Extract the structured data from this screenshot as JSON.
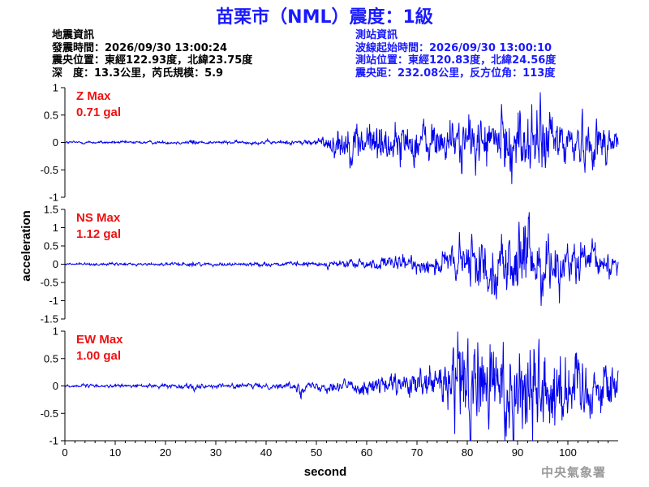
{
  "title": "苗栗市（NML）震度：1級",
  "quake_info": {
    "heading": "地震資訊",
    "time": "發震時間：2026/09/30 13:00:24",
    "epicenter": "震央位置：東經122.93度，北緯23.75度",
    "depth_magnitude": "深　度：13.3公里，芮氏規模：5.9"
  },
  "station_info": {
    "heading": "測站資訊",
    "wave_start": "波線起始時間：2026/09/30 13:00:10",
    "location": "測站位置：東經120.83度，北緯24.56度",
    "distance": "震央距：232.08公里，反方位角：113度"
  },
  "agency": "中央氣象署",
  "colors": {
    "title": "#1a1aff",
    "trace": "#0000ee",
    "max_label": "#ee1111",
    "station_info": "#1a1aff"
  },
  "chart_data": {
    "type": "line",
    "xlabel": "second",
    "ylabel": "acceleration",
    "xlim": [
      0,
      110
    ],
    "xticks": [
      0,
      10,
      20,
      30,
      40,
      50,
      60,
      70,
      80,
      90,
      100
    ],
    "panels": [
      {
        "name": "Z",
        "max_label": "Z Max",
        "max_value": "0.71 gal",
        "ylim": [
          -1,
          1
        ],
        "yticks": [
          1,
          0.5,
          0,
          -0.5,
          -1
        ],
        "envelope": [
          {
            "t": 0,
            "a": 0.02
          },
          {
            "t": 24,
            "a": 0.02
          },
          {
            "t": 25.5,
            "a": 0.05
          },
          {
            "t": 27,
            "a": 0.02
          },
          {
            "t": 45,
            "a": 0.03
          },
          {
            "t": 50,
            "a": 0.05
          },
          {
            "t": 52,
            "a": 0.1
          },
          {
            "t": 54,
            "a": 0.25
          },
          {
            "t": 60,
            "a": 0.32
          },
          {
            "t": 70,
            "a": 0.3
          },
          {
            "t": 80,
            "a": 0.34
          },
          {
            "t": 87,
            "a": 0.45
          },
          {
            "t": 93,
            "a": 0.55
          },
          {
            "t": 100,
            "a": 0.38
          },
          {
            "t": 110,
            "a": 0.25
          }
        ]
      },
      {
        "name": "NS",
        "max_label": "NS Max",
        "max_value": "1.12 gal",
        "ylim": [
          -1.5,
          1.5
        ],
        "yticks": [
          1.5,
          1,
          0.5,
          0,
          -0.5,
          -1,
          -1.5
        ],
        "envelope": [
          {
            "t": 0,
            "a": 0.03
          },
          {
            "t": 24,
            "a": 0.03
          },
          {
            "t": 25.5,
            "a": 0.08
          },
          {
            "t": 27,
            "a": 0.03
          },
          {
            "t": 50,
            "a": 0.05
          },
          {
            "t": 58,
            "a": 0.1
          },
          {
            "t": 65,
            "a": 0.15
          },
          {
            "t": 72,
            "a": 0.2
          },
          {
            "t": 76,
            "a": 0.35
          },
          {
            "t": 80,
            "a": 0.55
          },
          {
            "t": 88,
            "a": 0.65
          },
          {
            "t": 92,
            "a": 0.9
          },
          {
            "t": 96,
            "a": 0.55
          },
          {
            "t": 103,
            "a": 0.45
          },
          {
            "t": 110,
            "a": 0.25
          }
        ]
      },
      {
        "name": "EW",
        "max_label": "EW Max",
        "max_value": "1.00 gal",
        "ylim": [
          -1,
          1
        ],
        "yticks": [
          1,
          0.5,
          0,
          -0.5,
          -1
        ],
        "envelope": [
          {
            "t": 0,
            "a": 0.02
          },
          {
            "t": 24,
            "a": 0.03
          },
          {
            "t": 25.5,
            "a": 0.06
          },
          {
            "t": 27,
            "a": 0.03
          },
          {
            "t": 45,
            "a": 0.04
          },
          {
            "t": 46.5,
            "a": 0.14
          },
          {
            "t": 48,
            "a": 0.04
          },
          {
            "t": 55,
            "a": 0.1
          },
          {
            "t": 62,
            "a": 0.14
          },
          {
            "t": 70,
            "a": 0.18
          },
          {
            "t": 74,
            "a": 0.3
          },
          {
            "t": 78,
            "a": 0.8
          },
          {
            "t": 84,
            "a": 0.7
          },
          {
            "t": 92,
            "a": 0.85
          },
          {
            "t": 100,
            "a": 0.55
          },
          {
            "t": 110,
            "a": 0.35
          }
        ]
      }
    ]
  }
}
